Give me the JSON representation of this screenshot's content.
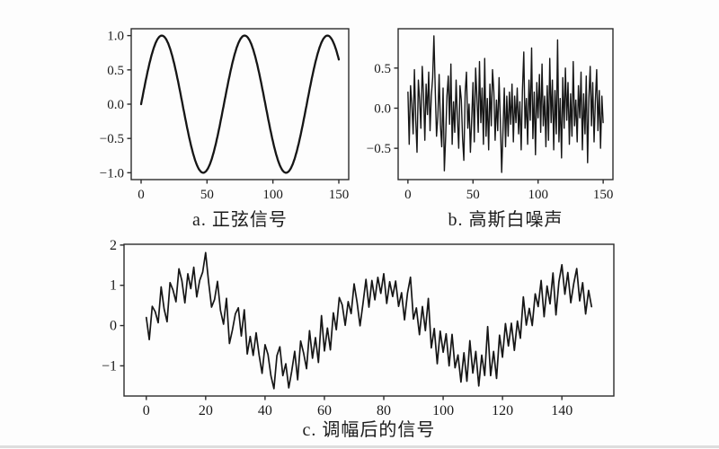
{
  "page": {
    "background": "#fdfdfd",
    "bottom_divider_color": "#dedede",
    "axis_color": "#2b2b2b",
    "tick_label_color": "#1a1a1a"
  },
  "chart_data": [
    {
      "id": "sine",
      "type": "line",
      "caption": "a. 正弦信号",
      "xlim": [
        -7.5,
        157.5
      ],
      "ylim": [
        -1.1,
        1.1
      ],
      "xticks": {
        "values": [
          0,
          50,
          100,
          150
        ],
        "labels": [
          "0",
          "50",
          "100",
          "150"
        ]
      },
      "yticks": {
        "values": [
          -1.0,
          -0.5,
          0.0,
          0.5,
          1.0
        ],
        "labels": [
          "−1.0",
          "−0.5",
          "0.0",
          "0.5",
          "1.0"
        ]
      },
      "signal": {
        "kind": "sine",
        "amplitude": 1,
        "omega": 0.1,
        "x_min": 0,
        "x_max": 150,
        "sample_step": 0.5
      },
      "line_color": "#161616",
      "line_width": 2.3
    },
    {
      "id": "gaussian-noise",
      "type": "line",
      "caption": "b. 高斯白噪声",
      "xlim": [
        -7.5,
        157.5
      ],
      "ylim": [
        -0.89,
        0.99
      ],
      "xticks": {
        "values": [
          0,
          50,
          100,
          150
        ],
        "labels": [
          "0",
          "50",
          "100",
          "150"
        ]
      },
      "yticks": {
        "values": [
          -0.5,
          0.0,
          0.5
        ],
        "labels": [
          "−0.5",
          "0.0",
          "0.5"
        ]
      },
      "signal": {
        "kind": "noise"
      },
      "values": [
        0.2,
        -0.45,
        0.28,
        0.05,
        -0.32,
        0.48,
        -0.15,
        -0.55,
        0.35,
        0.1,
        -0.25,
        0.52,
        0.18,
        -0.4,
        0.3,
        -0.08,
        0.45,
        -0.28,
        0.15,
        0.38,
        0.9,
        0.22,
        -0.35,
        -0.1,
        0.42,
        -0.22,
        -0.48,
        0.25,
        -0.78,
        -0.35,
        0.15,
        0.4,
        -0.2,
        0.55,
        -0.45,
        0.08,
        -0.3,
        0.35,
        -0.12,
        -0.5,
        0.28,
        0.1,
        -0.38,
        -0.65,
        0.2,
        0.45,
        -0.25,
        0.05,
        -0.55,
        -0.15,
        0.32,
        -0.42,
        0.5,
        0.15,
        -0.3,
        0.58,
        -0.18,
        0.25,
        -0.45,
        0.62,
        -0.35,
        0.12,
        -0.52,
        0.3,
        -0.22,
        0.48,
        0.2,
        -0.4,
        0.1,
        -0.28,
        0.38,
        -0.15,
        -0.8,
        -0.3,
        0.25,
        -0.48,
        0.15,
        -0.35,
        0.2,
        -0.2,
        0.3,
        -0.42,
        0.15,
        -0.18,
        0.25,
        -0.32,
        0.08,
        -0.52,
        0.22,
        0.7,
        -0.25,
        0.12,
        -0.45,
        0.35,
        -0.15,
        0.75,
        -0.38,
        0.2,
        -0.58,
        0.32,
        -0.12,
        0.42,
        -0.3,
        0.55,
        -0.22,
        0.15,
        -0.48,
        0.28,
        -0.4,
        0.62,
        -0.18,
        0.35,
        -0.52,
        0.22,
        -0.32,
        0.85,
        -0.42,
        0.12,
        -0.62,
        0.38,
        -0.25,
        0.5,
        -0.15,
        0.32,
        -0.45,
        0.18,
        -0.35,
        0.58,
        -0.22,
        0.1,
        -0.42,
        0.28,
        -0.12,
        0.45,
        -0.52,
        0.18,
        -0.32,
        0.4,
        -0.68,
        0.12,
        0.52,
        -0.22,
        0.32,
        -0.42,
        0.08,
        0.48,
        -0.28,
        0.22,
        -0.5,
        0.15,
        -0.18
      ],
      "line_color": "#161616",
      "line_width": 1.4
    },
    {
      "id": "modulated",
      "type": "line",
      "caption": "c. 调幅后的信号",
      "xlim": [
        -7.5,
        157.5
      ],
      "ylim": [
        -1.75,
        2.02
      ],
      "xticks": {
        "values": [
          0,
          20,
          40,
          60,
          80,
          100,
          120,
          140
        ],
        "labels": [
          "0",
          "20",
          "40",
          "60",
          "80",
          "100",
          "120",
          "140"
        ]
      },
      "yticks": {
        "values": [
          -1,
          0,
          1,
          2
        ],
        "labels": [
          "−1",
          "0",
          "1",
          "2"
        ]
      },
      "signal": {
        "kind": "sine_plus_noise",
        "amplitude": 1,
        "omega": 0.1,
        "noise_source": "gaussian-noise"
      },
      "line_color": "#161616",
      "line_width": 1.7
    }
  ]
}
